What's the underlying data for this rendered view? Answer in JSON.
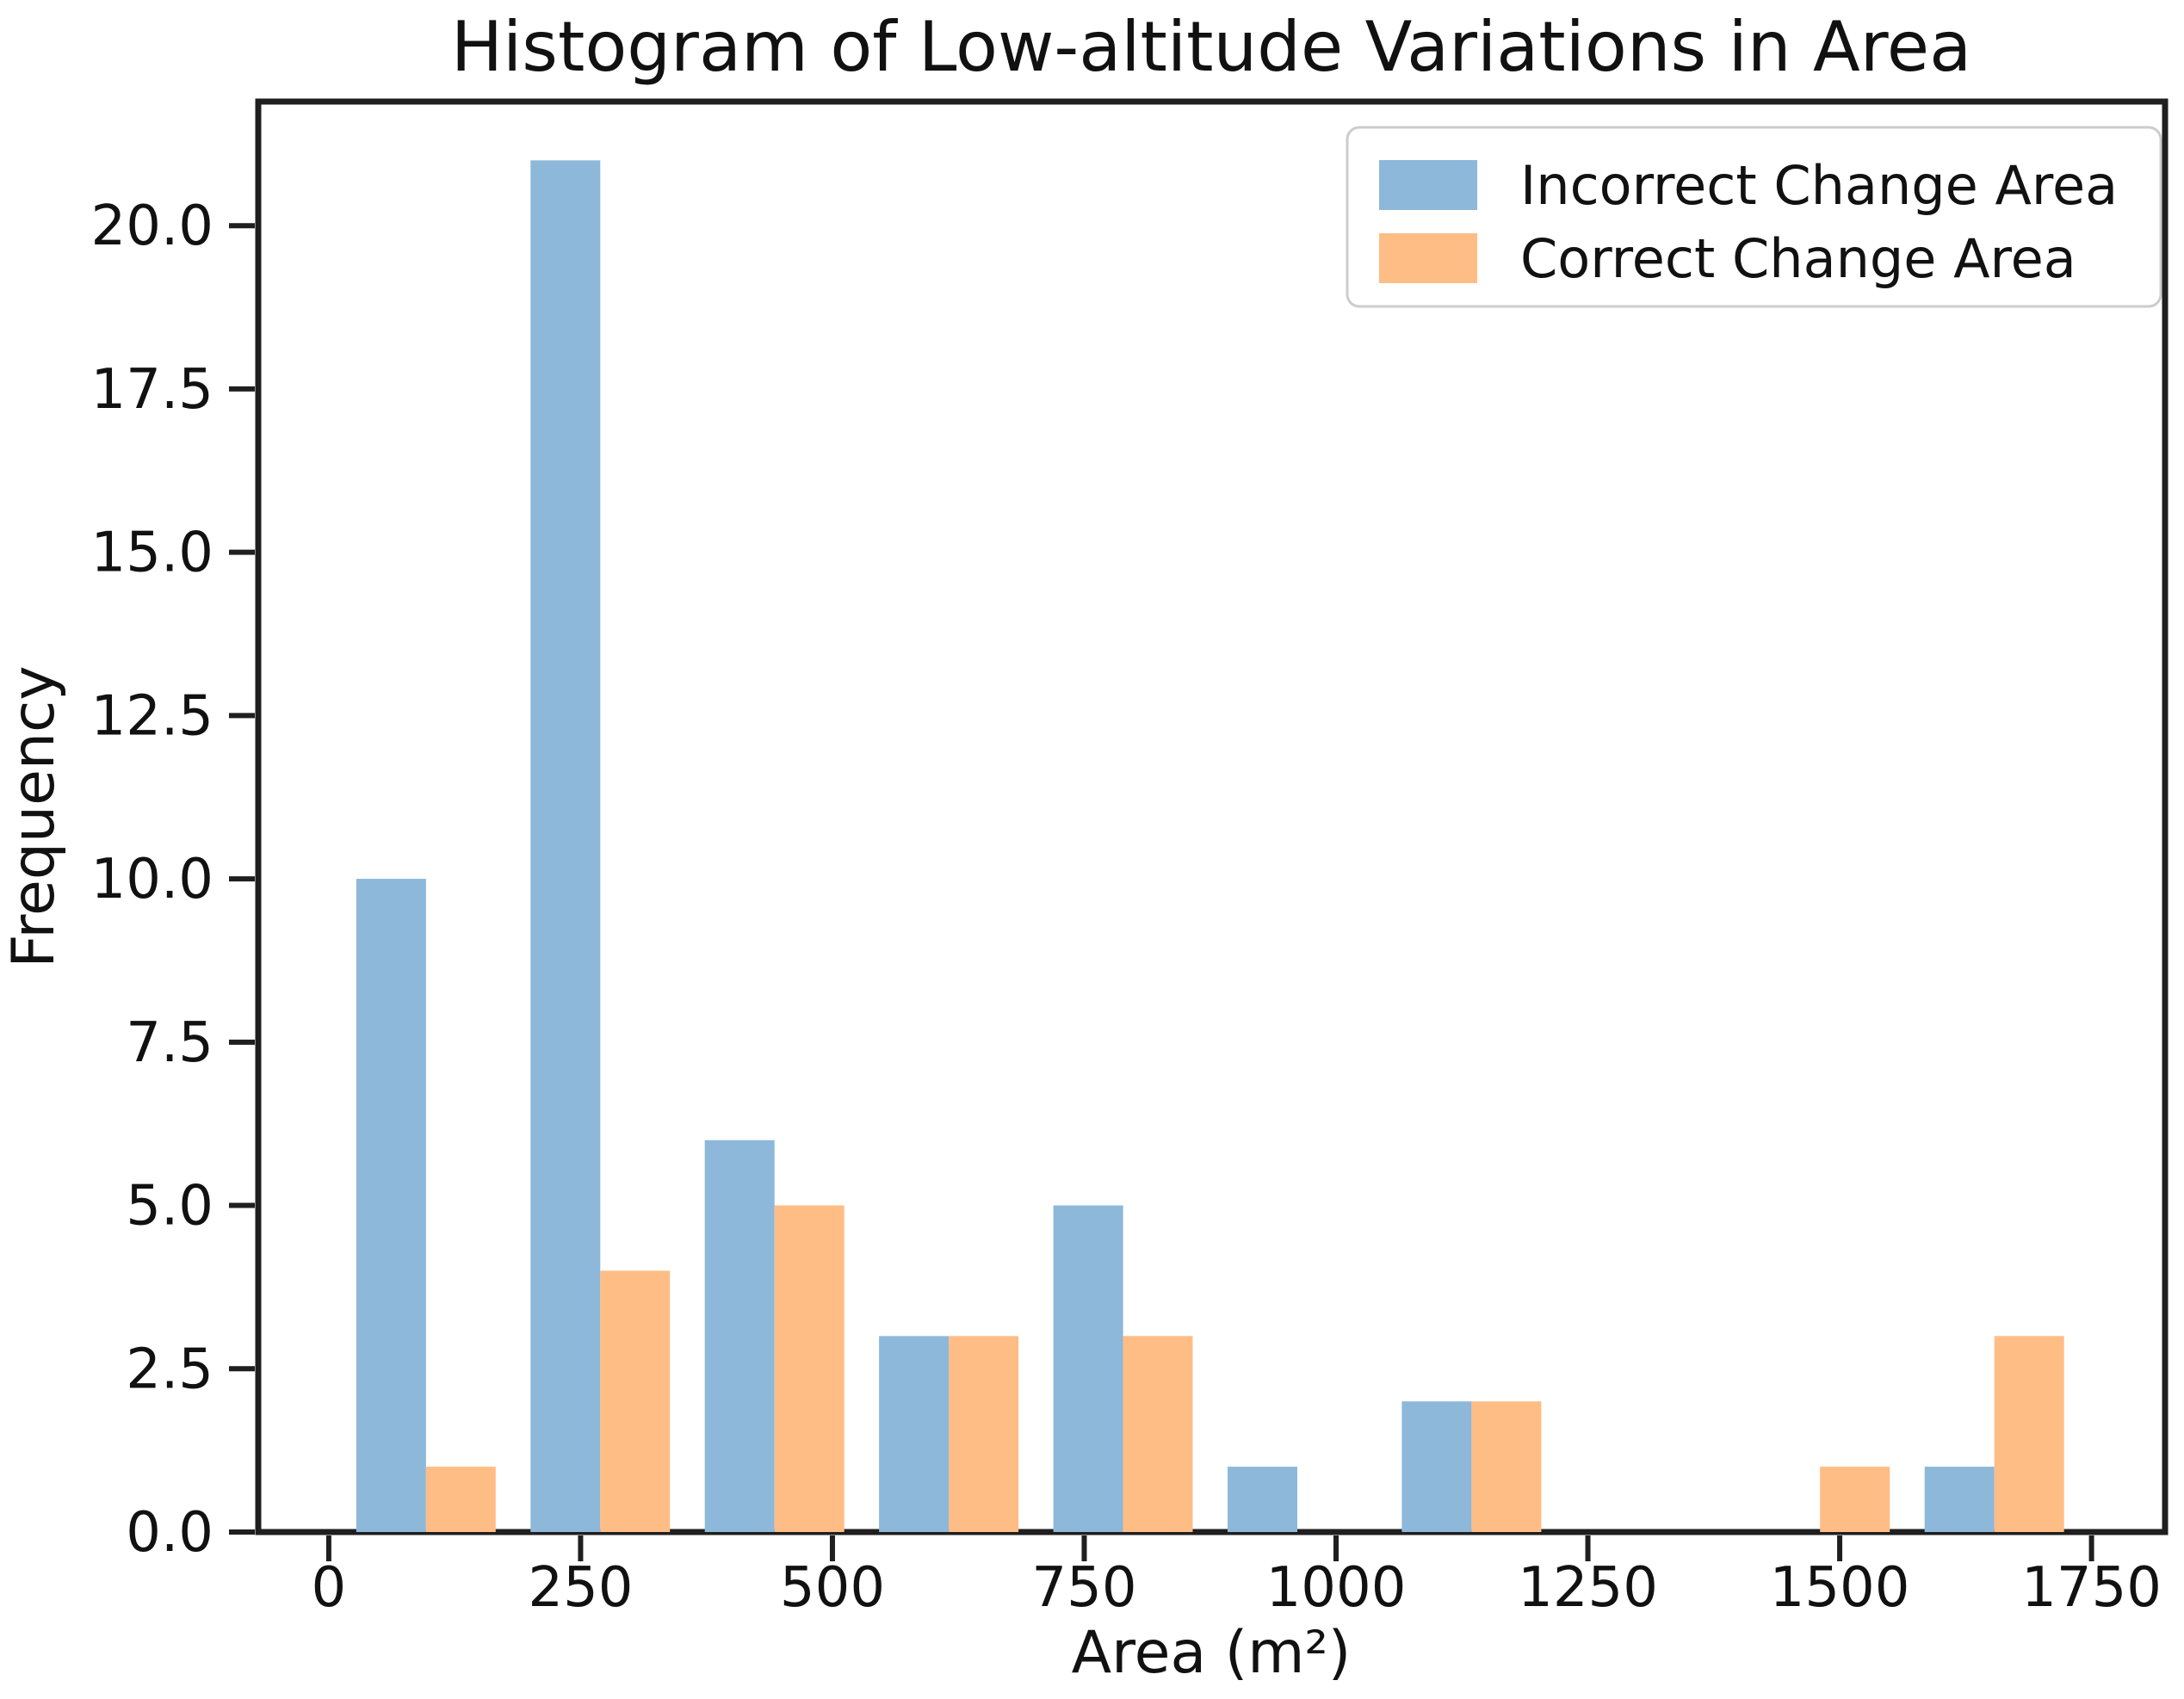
{
  "figure": {
    "background": "#ffffff"
  },
  "chart_data": {
    "type": "bar",
    "subtype": "grouped-histogram",
    "title": "Histogram of Low-altitude Variations in Area",
    "xlabel": "Area (m²)",
    "ylabel": "Frequency",
    "bin_edges": [
      10,
      183,
      356,
      529,
      702,
      875,
      1048,
      1221,
      1394,
      1567,
      1740
    ],
    "series": [
      {
        "name": "Incorrect Change Area",
        "color": "#8db8da",
        "values": [
          10,
          21,
          6,
          3,
          5,
          1,
          2,
          0,
          0,
          1
        ]
      },
      {
        "name": "Correct Change Area",
        "color": "#ffbd86",
        "values": [
          1,
          4,
          5,
          3,
          3,
          0,
          2,
          0,
          1,
          3
        ]
      }
    ],
    "x_ticks": [
      {
        "value": 0,
        "label": "0"
      },
      {
        "value": 250,
        "label": "250"
      },
      {
        "value": 500,
        "label": "500"
      },
      {
        "value": 750,
        "label": "750"
      },
      {
        "value": 1000,
        "label": "1000"
      },
      {
        "value": 1250,
        "label": "1250"
      },
      {
        "value": 1500,
        "label": "1500"
      },
      {
        "value": 1750,
        "label": "1750"
      }
    ],
    "y_ticks": [
      {
        "value": 0,
        "label": "0.0"
      },
      {
        "value": 2.5,
        "label": "2.5"
      },
      {
        "value": 5,
        "label": "5.0"
      },
      {
        "value": 7.5,
        "label": "7.5"
      },
      {
        "value": 10,
        "label": "10.0"
      },
      {
        "value": 12.5,
        "label": "12.5"
      },
      {
        "value": 15,
        "label": "15.0"
      },
      {
        "value": 17.5,
        "label": "17.5"
      },
      {
        "value": 20,
        "label": "20.0"
      }
    ],
    "xlim": [
      -70,
      1823
    ],
    "ylim": [
      0,
      21.9
    ],
    "grid": false,
    "legend": {
      "position": "upper right",
      "entries": [
        "Incorrect Change Area",
        "Correct Change Area"
      ]
    },
    "axis_color": "#1f1f1f",
    "legend_border_color": "#cccccc"
  }
}
